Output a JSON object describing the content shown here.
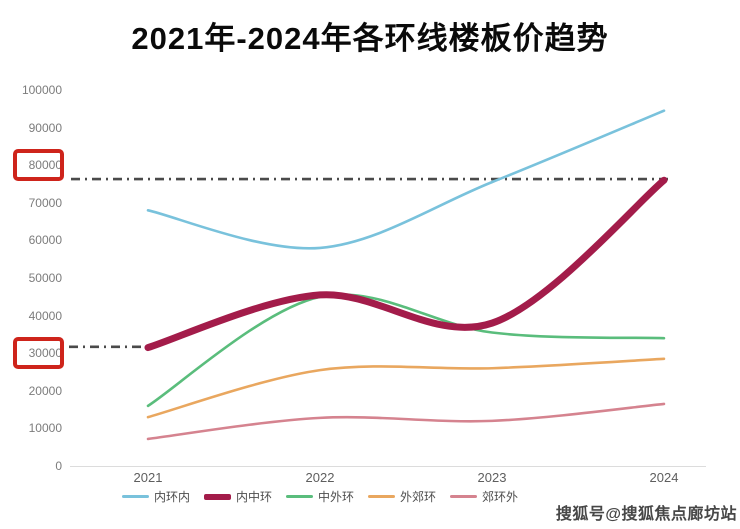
{
  "title": "2021年-2024年各环线楼板价趋势",
  "watermark": "搜狐号@搜狐焦点廊坊站",
  "chart_data": {
    "type": "line",
    "smooth": true,
    "categories": [
      "2021",
      "2022",
      "2023",
      "2024"
    ],
    "series": [
      {
        "name": "内环内",
        "color": "#79c2dc",
        "width": 2.6,
        "values": [
          68000,
          58000,
          75500,
          94500
        ]
      },
      {
        "name": "内中环",
        "color": "#a31c4a",
        "width": 7,
        "values": [
          31500,
          45500,
          38000,
          76000
        ]
      },
      {
        "name": "中外环",
        "color": "#5abd7c",
        "width": 2.6,
        "values": [
          16000,
          45000,
          35500,
          34000
        ]
      },
      {
        "name": "外郊环",
        "color": "#e9a75f",
        "width": 2.6,
        "values": [
          13000,
          25500,
          26000,
          28500
        ]
      },
      {
        "name": "郊环外",
        "color": "#d5838f",
        "width": 2.6,
        "values": [
          7200,
          12800,
          12000,
          16500
        ]
      }
    ],
    "ylim": [
      0,
      100000
    ],
    "ytick_step": 10000,
    "ytick_labels": [
      "100000",
      "90000",
      "80000",
      "70000",
      "60000",
      "50000",
      "40000",
      "30000",
      "20000",
      "10000",
      "0"
    ],
    "grid": false,
    "legend_position": "bottom",
    "axis_line_color": "#dcdcdc",
    "annotations": {
      "dash_color": "#4a4a4a",
      "dashed_lines": [
        {
          "value": 76300,
          "span": "full"
        },
        {
          "value": 31700,
          "span": "left-stub"
        }
      ],
      "highlight_box_color": "#ce241b",
      "highlight_values": [
        80000,
        30000
      ]
    }
  }
}
